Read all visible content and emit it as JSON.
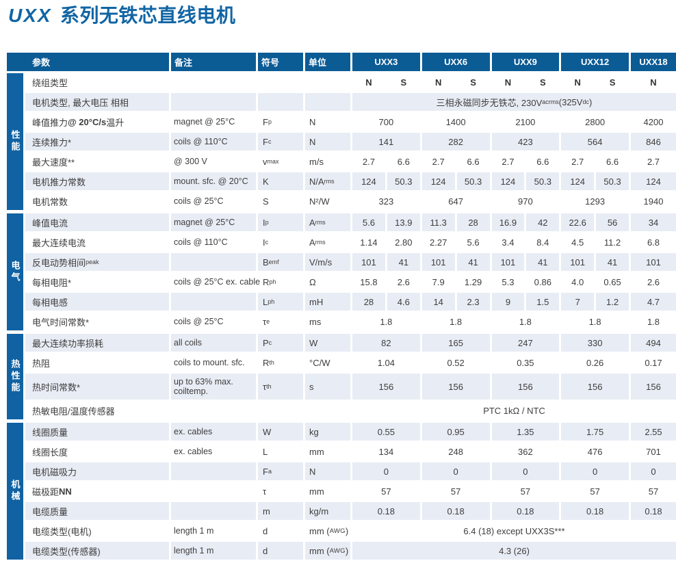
{
  "title": {
    "brand": "UXX",
    "rest": "系列无铁芯直线电机"
  },
  "colors": {
    "title": "#1165a4",
    "header_bg": "#0b5b95",
    "sidebar_bg": "#1062a3",
    "row_light": "#e8ecf4",
    "text": "#3d3d3d",
    "header_text": "#ffffff"
  },
  "table": {
    "header": {
      "param": "参数",
      "note": "备注",
      "symbol": "符号",
      "unit": "单位",
      "models": [
        "UXX3",
        "UXX6",
        "UXX9",
        "UXX12",
        "UXX18"
      ]
    },
    "sections": [
      {
        "key": "performance",
        "label": "性能",
        "rows": [
          {
            "param": "绕组类型",
            "note": "",
            "sym": "",
            "unit": "",
            "mode": "sub",
            "bold_vals": true,
            "values": [
              "N",
              "S",
              "N",
              "S",
              "N",
              "S",
              "N",
              "S",
              "N"
            ]
          },
          {
            "param": "电机类型, 最大电压  相相",
            "note": "",
            "sym": "",
            "unit": "",
            "mode": "all",
            "values": [
              "三相永磁同步无铁芯, 230V<sub>acrms</sub>(325V<sub>dc</sub>)"
            ]
          },
          {
            "param": "峰值推力 <b>@ 20°C/s</b> 温升",
            "note": "magnet @ 25°C",
            "sym": "F<sub>p</sub>",
            "unit": "N",
            "mode": "group",
            "values": [
              "700",
              "1400",
              "2100",
              "2800",
              "4200"
            ]
          },
          {
            "param": "连续推力*",
            "note": "coils @ 110°C",
            "sym": "F<sub>c</sub>",
            "unit": "N",
            "mode": "group",
            "values": [
              "141",
              "282",
              "423",
              "564",
              "846"
            ]
          },
          {
            "param": "最大速度**",
            "note": "@ 300 V",
            "sym": "v<sub>max</sub>",
            "unit": "m/s",
            "mode": "sub",
            "values": [
              "2.7",
              "6.6",
              "2.7",
              "6.6",
              "2.7",
              "6.6",
              "2.7",
              "6.6",
              "2.7"
            ]
          },
          {
            "param": "电机推力常数",
            "note": "mount. sfc. @ 20°C",
            "sym": "K",
            "unit": "N/A<sub>rms</sub>",
            "mode": "sub",
            "values": [
              "124",
              "50.3",
              "124",
              "50.3",
              "124",
              "50.3",
              "124",
              "50.3",
              "124"
            ]
          },
          {
            "param": "电机常数",
            "note": "coils @ 25°C",
            "sym": "S",
            "unit": "N²/W",
            "mode": "group",
            "values": [
              "323",
              "647",
              "970",
              "1293",
              "1940"
            ]
          }
        ]
      },
      {
        "key": "electrical",
        "label": "电气",
        "rows": [
          {
            "param": "峰值电流",
            "note": "magnet @ 25°C",
            "sym": "I<sub>p</sub>",
            "unit": "A<sub>rms</sub>",
            "mode": "sub",
            "values": [
              "5.6",
              "13.9",
              "11.3",
              "28",
              "16.9",
              "42",
              "22.6",
              "56",
              "34"
            ]
          },
          {
            "param": "最大连续电流",
            "note": "coils @ 110°C",
            "sym": "I<sub>c</sub>",
            "unit": "A<sub>rms</sub>",
            "mode": "sub",
            "values": [
              "1.14",
              "2.80",
              "2.27",
              "5.6",
              "3.4",
              "8.4",
              "4.5",
              "11.2",
              "6.8"
            ]
          },
          {
            "param": "反电动势相间<sub>peak</sub>",
            "note": "",
            "sym": "B<sub>emf</sub>",
            "unit": "V/m/s",
            "mode": "sub",
            "values": [
              "101",
              "41",
              "101",
              "41",
              "101",
              "41",
              "101",
              "41",
              "101"
            ]
          },
          {
            "param": "每相电阻*",
            "note": "coils @ 25°C ex. cable",
            "sym": "R<sub>ph</sub>",
            "unit": "Ω",
            "mode": "sub",
            "values": [
              "15.8",
              "2.6",
              "7.9",
              "1.29",
              "5.3",
              "0.86",
              "4.0",
              "0.65",
              "2.6"
            ]
          },
          {
            "param": "每相电感",
            "note": "",
            "sym": "L<sub>ph</sub>",
            "unit": "mH",
            "mode": "sub",
            "values": [
              "28",
              "4.6",
              "14",
              "2.3",
              "9",
              "1.5",
              "7",
              "1.2",
              "4.7"
            ]
          },
          {
            "param": "电气时间常数*",
            "note": "coils @ 25°C",
            "sym": "τ<sub>e</sub>",
            "unit": "ms",
            "mode": "group",
            "values": [
              "1.8",
              "1.8",
              "1.8",
              "1.8",
              "1.8"
            ]
          }
        ]
      },
      {
        "key": "thermal",
        "label": "热性能",
        "rows": [
          {
            "param": "最大连续功率损耗",
            "note": "all coils",
            "sym": "P<sub>c</sub>",
            "unit": "W",
            "mode": "group",
            "values": [
              "82",
              "165",
              "247",
              "330",
              "494"
            ]
          },
          {
            "param": "热阻",
            "note": "coils to mount. sfc.",
            "sym": "R<sub>th</sub>",
            "unit": "°C/W",
            "mode": "group",
            "values": [
              "1.04",
              "0.52",
              "0.35",
              "0.26",
              "0.17"
            ]
          },
          {
            "param": "热时间常数*",
            "note": "up to 63% max. coiltemp.",
            "sym": "τ<sub>th</sub>",
            "unit": "s",
            "mode": "group",
            "tall": true,
            "values": [
              "156",
              "156",
              "156",
              "156",
              "156"
            ]
          },
          {
            "param": "热敏电阻/温度传感器",
            "note": "",
            "sym": "",
            "unit": "",
            "mode": "all",
            "values": [
              "PTC 1kΩ / NTC"
            ]
          }
        ]
      },
      {
        "key": "mechanical",
        "label": "机械",
        "rows": [
          {
            "param": "线圈质量",
            "note": "ex. cables",
            "sym": "W",
            "unit": "kg",
            "mode": "group",
            "values": [
              "0.55",
              "0.95",
              "1.35",
              "1.75",
              "2.55"
            ]
          },
          {
            "param": "线圈长度",
            "note": "ex. cables",
            "sym": "L",
            "unit": "mm",
            "mode": "group",
            "values": [
              "134",
              "248",
              "362",
              "476",
              "701"
            ]
          },
          {
            "param": "电机磁吸力",
            "note": "",
            "sym": "F<sub>a</sub>",
            "unit": "N",
            "mode": "group",
            "values": [
              "0",
              "0",
              "0",
              "0",
              "0"
            ]
          },
          {
            "param": "磁极距 <b>NN</b>",
            "note": "",
            "sym": "τ",
            "unit": "mm",
            "mode": "group",
            "values": [
              "57",
              "57",
              "57",
              "57",
              "57"
            ]
          },
          {
            "param": "电缆质量",
            "note": "",
            "sym": "m",
            "unit": "kg/m",
            "mode": "group",
            "values": [
              "0.18",
              "0.18",
              "0.18",
              "0.18",
              "0.18"
            ]
          },
          {
            "param": "电缆类型(电机)",
            "note": "length 1 m",
            "sym": "d",
            "unit": "mm (<span class=\"sc\">AWG</span>)",
            "mode": "all",
            "values": [
              "6.4 (18) except UXX3S***"
            ]
          },
          {
            "param": "电缆类型(传感器)",
            "note": "length 1 m",
            "sym": "d",
            "unit": "mm (<span class=\"sc\">AWG</span>)",
            "mode": "all",
            "values": [
              "4.3 (26)"
            ]
          }
        ]
      }
    ]
  }
}
